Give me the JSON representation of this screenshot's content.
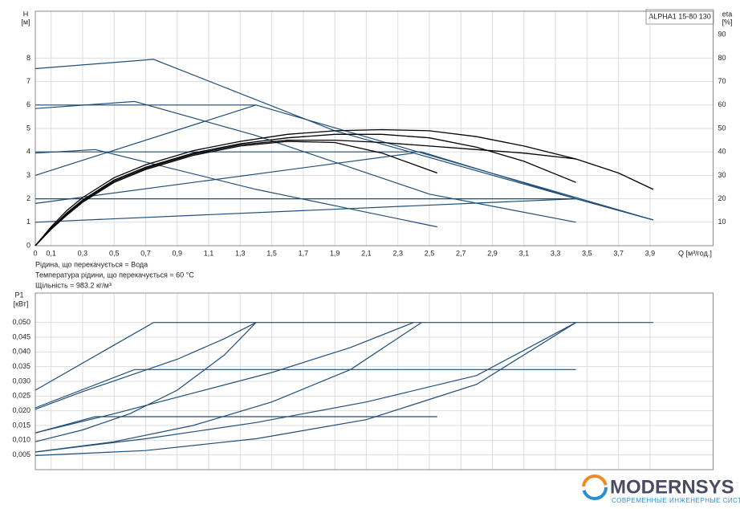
{
  "chart_data": [
    {
      "type": "line",
      "title": "ALPHA1 15-80 130",
      "ylabel": "H",
      "yunit": "[м]",
      "y2label": "eta",
      "y2unit": "[%]",
      "xlabel": "Q [м³/год.]",
      "notes": [
        "Рідина, що перекачується = Вода",
        "Температура рідини, що перекачується = 60 °C",
        "Щільність = 983.2 кг/м³"
      ],
      "xlim": [
        0,
        4.3
      ],
      "ylim": [
        0,
        10
      ],
      "y2lim": [
        0,
        100
      ],
      "grid": true,
      "xticks": [
        0,
        {
          "value": 0.1,
          "label": "0,1"
        },
        {
          "value": 0.3,
          "label": "0,3"
        },
        {
          "value": 0.5,
          "label": "0,5"
        },
        {
          "value": 0.7,
          "label": "0,7"
        },
        {
          "value": 0.9,
          "label": "0,9"
        },
        {
          "value": 1.1,
          "label": "1,1"
        },
        {
          "value": 1.3,
          "label": "1,3"
        },
        {
          "value": 1.5,
          "label": "1,5"
        },
        {
          "value": 1.7,
          "label": "1,7"
        },
        {
          "value": 1.9,
          "label": "1,9"
        },
        {
          "value": 2.1,
          "label": "2,1"
        },
        {
          "value": 2.3,
          "label": "2,3"
        },
        {
          "value": 2.5,
          "label": "2,5"
        },
        {
          "value": 2.7,
          "label": "2,7"
        },
        {
          "value": 2.9,
          "label": "2,9"
        },
        {
          "value": 3.1,
          "label": "3,1"
        },
        {
          "value": 3.3,
          "label": "3,3"
        },
        {
          "value": 3.5,
          "label": "3,5"
        },
        {
          "value": 3.7,
          "label": "3,7"
        },
        {
          "value": 3.9,
          "label": "3,9"
        }
      ],
      "yticks": [
        0,
        1,
        2,
        3,
        4,
        5,
        6,
        7,
        8
      ],
      "y2ticks": [
        10,
        20,
        30,
        40,
        50,
        60,
        70,
        80,
        90
      ],
      "series": [
        {
          "color": "#1f4e79",
          "x": [
            0,
            0.75,
            1.9,
            3.43,
            3.92
          ],
          "values": [
            7.55,
            7.95,
            4.9,
            2.0,
            1.1
          ]
        },
        {
          "color": "#1f4e79",
          "x": [
            0,
            0.63,
            1.4,
            2.5,
            3.43
          ],
          "values": [
            5.85,
            6.15,
            4.7,
            2.2,
            1.0
          ]
        },
        {
          "color": "#1f4e79",
          "x": [
            0,
            0.38,
            1.4,
            2.55
          ],
          "values": [
            3.95,
            4.1,
            2.4,
            0.8
          ]
        },
        {
          "color": "#1f4e79",
          "x": [
            0,
            1.4,
            3.92
          ],
          "values": [
            6.0,
            6.0,
            1.1
          ]
        },
        {
          "color": "#1f4e79",
          "x": [
            0,
            2.45,
            3.43
          ],
          "values": [
            4.0,
            4.0,
            2.0
          ]
        },
        {
          "color": "#1f4e79",
          "x": [
            0,
            3.43,
            3.92
          ],
          "values": [
            2.0,
            2.0,
            1.1
          ]
        },
        {
          "color": "#1f4e79",
          "x": [
            0,
            1.4
          ],
          "values": [
            3.0,
            6.0
          ]
        },
        {
          "color": "#1f4e79",
          "x": [
            0,
            2.4
          ],
          "values": [
            1.8,
            3.95
          ]
        },
        {
          "color": "#1f4e79",
          "x": [
            0,
            3.43
          ],
          "values": [
            1.0,
            2.0
          ]
        },
        {
          "color": "#000000",
          "x": [
            0,
            0.1,
            0.2,
            0.3,
            0.5,
            0.7,
            1.0,
            1.3,
            1.6,
            1.9,
            2.2,
            2.5,
            2.8,
            3.1,
            3.43,
            3.7,
            3.92
          ],
          "values": [
            0,
            0.8,
            1.5,
            2.05,
            2.9,
            3.45,
            4.05,
            4.45,
            4.75,
            4.9,
            4.95,
            4.9,
            4.65,
            4.25,
            3.7,
            3.1,
            2.4
          ]
        },
        {
          "color": "#000000",
          "x": [
            0,
            0.1,
            0.2,
            0.3,
            0.5,
            0.7,
            1.0,
            1.3,
            1.6,
            1.9,
            2.2,
            2.5,
            2.8,
            3.1,
            3.43
          ],
          "values": [
            0,
            0.75,
            1.4,
            1.95,
            2.8,
            3.35,
            3.95,
            4.35,
            4.6,
            4.75,
            4.75,
            4.6,
            4.2,
            3.6,
            2.7
          ]
        },
        {
          "color": "#000000",
          "x": [
            0,
            0.1,
            0.2,
            0.3,
            0.5,
            0.7,
            1.0,
            1.3,
            1.6,
            1.9,
            2.2,
            2.55
          ],
          "values": [
            0,
            0.7,
            1.3,
            1.85,
            2.7,
            3.25,
            3.85,
            4.25,
            4.45,
            4.4,
            3.95,
            3.1
          ]
        },
        {
          "color": "#000000",
          "x": [
            0,
            0.1,
            0.2,
            0.3,
            0.5,
            0.7,
            1.0,
            1.3,
            1.6,
            1.9,
            2.2,
            2.5,
            2.8,
            3.1,
            3.43
          ],
          "values": [
            0,
            0.7,
            1.35,
            1.9,
            2.75,
            3.3,
            3.9,
            4.3,
            4.5,
            4.5,
            4.4,
            4.25,
            4.1,
            3.95,
            3.7
          ]
        }
      ]
    },
    {
      "type": "line",
      "ylabel": "P1",
      "yunit": "[кВт]",
      "xlim": [
        0,
        4.3
      ],
      "ylim": [
        0,
        0.06
      ],
      "grid": true,
      "yticks": [
        {
          "value": 0.005,
          "label": "0,005"
        },
        {
          "value": 0.01,
          "label": "0,010"
        },
        {
          "value": 0.015,
          "label": "0,015"
        },
        {
          "value": 0.02,
          "label": "0,020"
        },
        {
          "value": 0.025,
          "label": "0,025"
        },
        {
          "value": 0.03,
          "label": "0,030"
        },
        {
          "value": 0.035,
          "label": "0,035"
        },
        {
          "value": 0.04,
          "label": "0,040"
        },
        {
          "value": 0.045,
          "label": "0,045"
        },
        {
          "value": 0.05,
          "label": "0,050"
        }
      ],
      "series": [
        {
          "color": "#1f4e79",
          "x": [
            0,
            0.75,
            3.92
          ],
          "values": [
            0.027,
            0.05,
            0.05
          ]
        },
        {
          "color": "#1f4e79",
          "x": [
            0,
            0.63,
            3.43
          ],
          "values": [
            0.021,
            0.034,
            0.034
          ]
        },
        {
          "color": "#1f4e79",
          "x": [
            0,
            0.38,
            2.55
          ],
          "values": [
            0.0125,
            0.018,
            0.018
          ]
        },
        {
          "color": "#1f4e79",
          "x": [
            0,
            0.3,
            0.6,
            0.9,
            1.2,
            1.4
          ],
          "values": [
            0.0205,
            0.0265,
            0.032,
            0.0375,
            0.0445,
            0.05
          ]
        },
        {
          "color": "#1f4e79",
          "x": [
            0,
            0.3,
            0.6,
            0.9,
            1.2,
            1.4
          ],
          "values": [
            0.0095,
            0.0135,
            0.019,
            0.027,
            0.039,
            0.05
          ]
        },
        {
          "color": "#1f4e79",
          "x": [
            0,
            0.5,
            1.0,
            1.5,
            2.0,
            2.4
          ],
          "values": [
            0.0125,
            0.019,
            0.026,
            0.033,
            0.0415,
            0.05
          ]
        },
        {
          "color": "#1f4e79",
          "x": [
            0,
            0.5,
            1.0,
            1.5,
            2.0,
            2.45
          ],
          "values": [
            0.006,
            0.0095,
            0.015,
            0.023,
            0.034,
            0.05
          ]
        },
        {
          "color": "#1f4e79",
          "x": [
            0,
            0.7,
            1.4,
            2.1,
            2.8,
            3.43
          ],
          "values": [
            0.006,
            0.0105,
            0.016,
            0.023,
            0.032,
            0.05
          ]
        },
        {
          "color": "#1f4e79",
          "x": [
            0,
            0.7,
            1.4,
            2.1,
            2.8,
            3.43
          ],
          "values": [
            0.0048,
            0.0065,
            0.0105,
            0.017,
            0.029,
            0.05
          ]
        }
      ]
    }
  ],
  "logo": {
    "name": "MODERNSYS",
    "tagline": "СОВРЕМЕННЫЕ ИНЖЕНЕРНЫЕ СИСТЕМЫ"
  }
}
